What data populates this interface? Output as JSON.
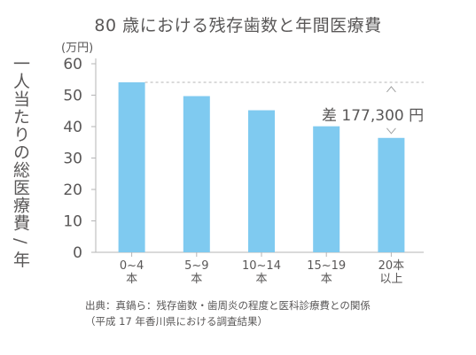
{
  "chart_data": {
    "type": "bar",
    "title": "80 歳における残存歯数と年間医療費",
    "ylabel": "一人当たりの総医療費 / 年",
    "yunit": "(万円)",
    "categories": [
      "0~4\n本",
      "5~9\n本",
      "10~14\n本",
      "15~19\n本",
      "20本\n以上"
    ],
    "values": [
      54.1,
      49.7,
      45.2,
      40.1,
      36.4
    ],
    "ylim": [
      0,
      60
    ],
    "yticks": [
      0,
      10,
      20,
      30,
      40,
      50,
      60
    ],
    "bar_color": "#7fcaf0",
    "annotation": "差 177,300 円",
    "grid": false
  },
  "source": {
    "line1": "出典：真鍋ら：残存歯数・歯周炎の程度と医科診療費との関係",
    "line2": "（平成 17 年香川県における調査結果）"
  }
}
